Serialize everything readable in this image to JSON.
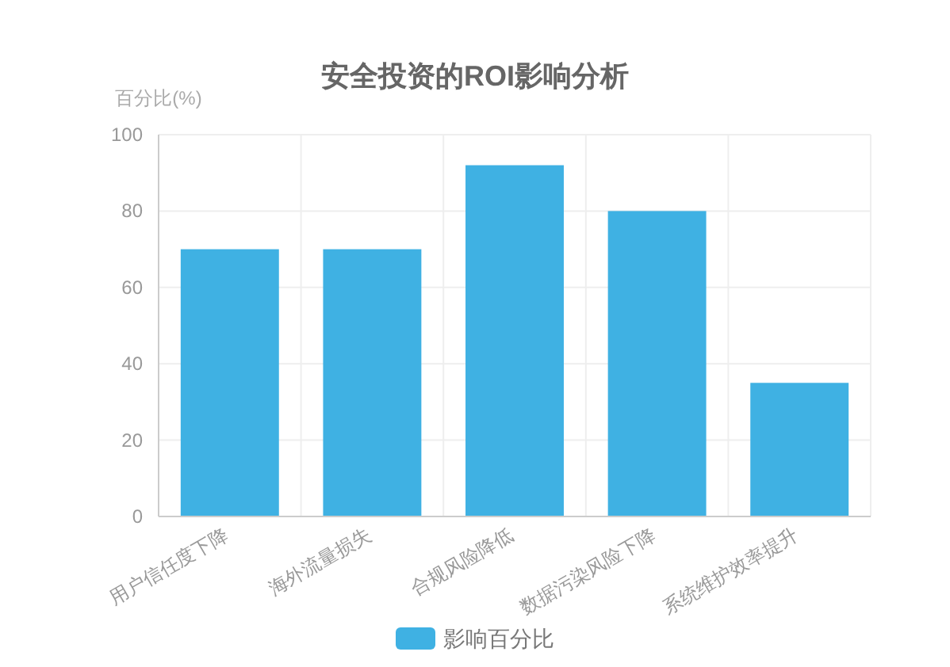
{
  "chart_data": {
    "type": "bar",
    "title": "安全投资的ROI影响分析",
    "ylabel": "百分比(%)",
    "categories": [
      "用户信任度下降",
      "海外流量损失",
      "合规风险降低",
      "数据污染风险下降",
      "系统维护效率提升"
    ],
    "series": [
      {
        "name": "影响百分比",
        "color": "#3fb1e3",
        "values": [
          70,
          70,
          92,
          80,
          35
        ]
      }
    ],
    "ylim": [
      0,
      100
    ],
    "yticks": [
      0,
      20,
      40,
      60,
      80,
      100
    ],
    "grid": true,
    "legend": "bottom"
  }
}
